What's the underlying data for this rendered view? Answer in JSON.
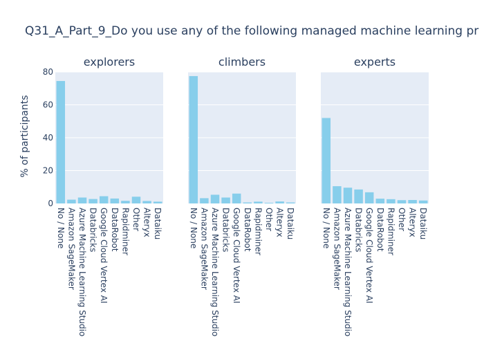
{
  "chart_data": {
    "type": "bar",
    "title": "Q31_A_Part_9_Do you use any of the following managed machine learning pr",
    "ylabel": "% of participants",
    "ylim": [
      0,
      80
    ],
    "yticks": [
      0,
      20,
      40,
      60,
      80
    ],
    "bar_color": "#87ceeb",
    "grid": true,
    "panels": [
      {
        "name": "explorers",
        "categories": [
          "No / None",
          "Amazon SageMaker",
          "Azure Machine Learning Studio",
          "Databricks",
          "Google Cloud Vertex AI",
          "DataRobot",
          "Rapidminer",
          "Other",
          "Alteryx",
          "Dataiku"
        ],
        "values": [
          74.5,
          2.3,
          3.6,
          2.7,
          4.4,
          3.0,
          1.6,
          4.1,
          1.5,
          1.1
        ]
      },
      {
        "name": "climbers",
        "categories": [
          "No / None",
          "Amazon SageMaker",
          "Azure Machine Learning Studio",
          "Databricks",
          "Google Cloud Vertex AI",
          "DataRobot",
          "Rapidminer",
          "Other",
          "Alteryx",
          "Dataiku"
        ],
        "values": [
          77.5,
          3.2,
          5.3,
          3.6,
          6.0,
          0.6,
          1.1,
          0.4,
          1.2,
          0.6
        ]
      },
      {
        "name": "experts",
        "categories": [
          "No / None",
          "Amazon SageMaker",
          "Azure Machine Learning Studio",
          "Databricks",
          "Google Cloud Vertex AI",
          "DataRobot",
          "Rapidminer",
          "Other",
          "Alteryx",
          "Dataiku"
        ],
        "values": [
          52.0,
          10.5,
          9.6,
          8.5,
          6.8,
          2.9,
          2.6,
          2.0,
          2.1,
          1.8
        ]
      }
    ]
  }
}
